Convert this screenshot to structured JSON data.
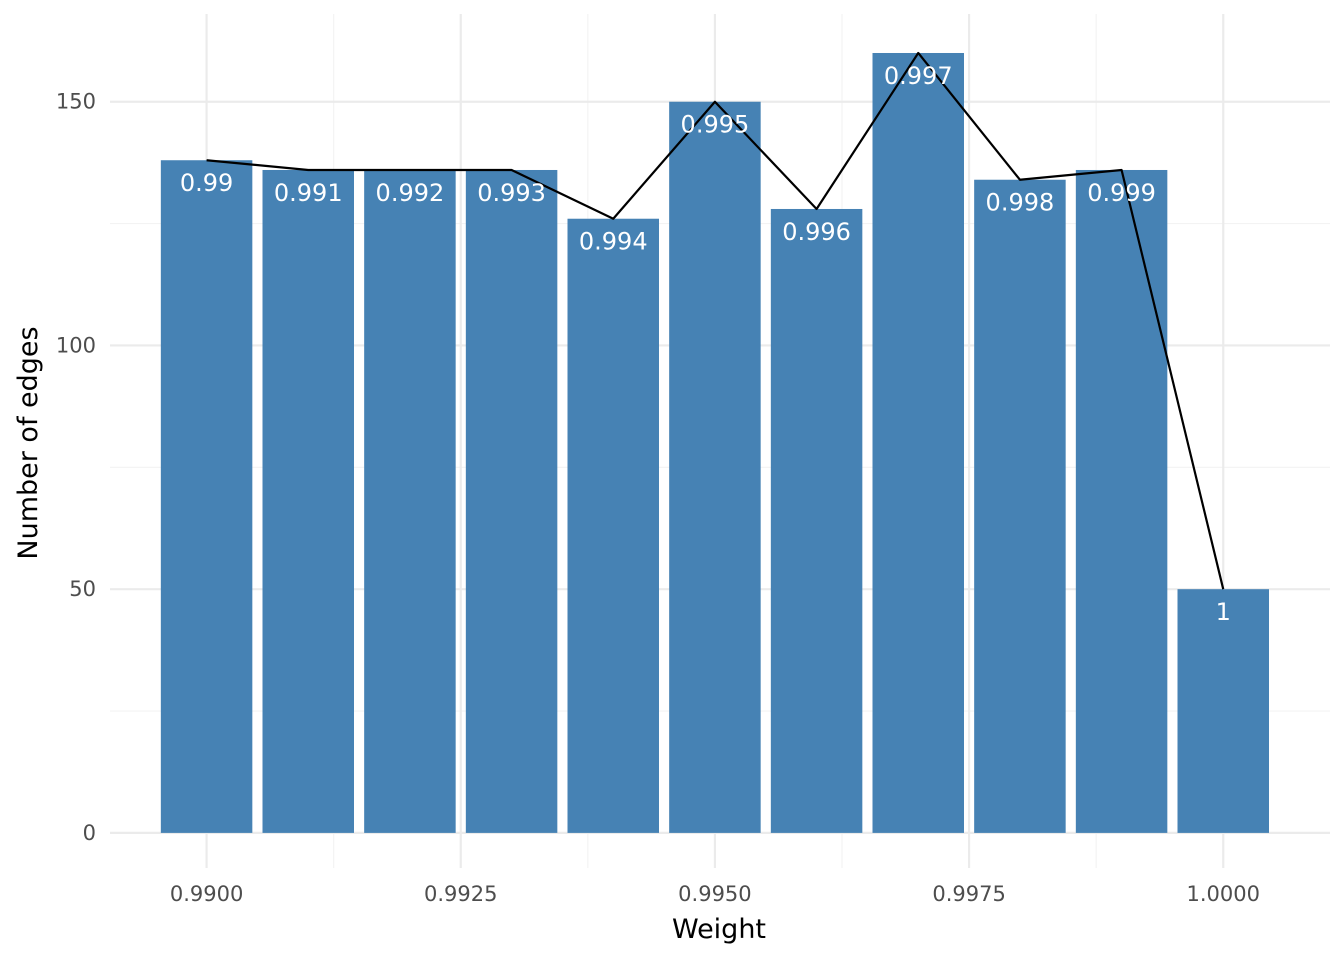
{
  "chart_data": {
    "type": "bar",
    "title": "",
    "xlabel": "Weight",
    "ylabel": "Number of edges",
    "x": [
      0.99,
      0.991,
      0.992,
      0.993,
      0.994,
      0.995,
      0.996,
      0.997,
      0.998,
      0.999,
      1.0
    ],
    "values": [
      138,
      136,
      136,
      136,
      126,
      150,
      128,
      160,
      134,
      136,
      50
    ],
    "bar_labels": [
      "0.99",
      "0.991",
      "0.992",
      "0.993",
      "0.994",
      "0.995",
      "0.996",
      "0.997",
      "0.998",
      "0.999",
      "1"
    ],
    "xlim": [
      0.98905,
      1.00105
    ],
    "ylim": [
      -7.2,
      168
    ],
    "x_ticks": [
      0.99,
      0.9925,
      0.995,
      0.9975,
      1.0
    ],
    "x_tick_labels": [
      "0.9900",
      "0.9925",
      "0.9950",
      "0.9975",
      "1.0000"
    ],
    "y_ticks": [
      0,
      50,
      100,
      150
    ],
    "y_tick_labels": [
      "0",
      "50",
      "100",
      "150"
    ],
    "grid": true,
    "bar_color": "#4682b4",
    "line_color": "#000000",
    "label_color": "#ffffff",
    "overlay_line": true
  }
}
